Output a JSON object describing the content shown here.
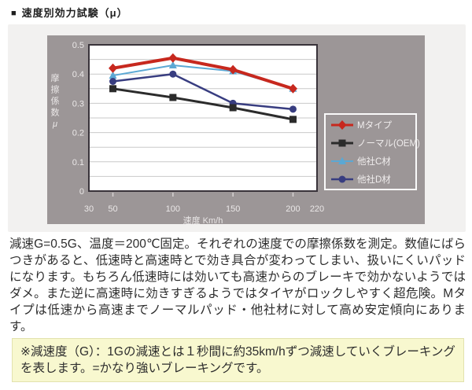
{
  "title": {
    "bullet": "■",
    "text": "速度別効力試験（μ）"
  },
  "chart_data": {
    "type": "line",
    "title": "速度別効力試験（μ）",
    "x": [
      50,
      100,
      150,
      200
    ],
    "xlabel": "速度 Km/h",
    "ylabel": "摩擦係数μ",
    "xlim": [
      30,
      220
    ],
    "ylim": [
      0,
      0.5
    ],
    "x_ticks": [
      30,
      50,
      100,
      150,
      200,
      220
    ],
    "y_ticks": [
      0,
      0.1,
      0.2,
      0.3,
      0.4,
      0.5
    ],
    "grid_step": 0.05,
    "grid": true,
    "legend_position": "right-inside",
    "draw_order": [
      2,
      3,
      1,
      0
    ],
    "series": [
      {
        "key": "m-type",
        "name": "Mタイプ",
        "color": "#c7281e",
        "marker": "diamond",
        "line_width": 4,
        "values": [
          0.42,
          0.455,
          0.415,
          0.35
        ]
      },
      {
        "key": "normal-oem",
        "name": "ノーマル(OEM)",
        "color": "#2b2b2b",
        "marker": "square",
        "line_width": 3,
        "values": [
          0.35,
          0.32,
          0.285,
          0.245
        ]
      },
      {
        "key": "other-c",
        "name": "他社C材",
        "color": "#5ba8d4",
        "marker": "triangle",
        "line_width": 2,
        "values": [
          0.395,
          0.43,
          0.41,
          0.35
        ]
      },
      {
        "key": "other-d",
        "name": "他社D材",
        "color": "#383d80",
        "marker": "circle",
        "line_width": 2.5,
        "values": [
          0.375,
          0.4,
          0.3,
          0.28
        ]
      }
    ],
    "style": {
      "chart_bg": "#9c9697",
      "plot_bg": "#ffffff",
      "plot_border": "#39333a",
      "grid_color": "#c9c9c9",
      "axis_text_color": "#eae7e7",
      "tick_color": "#d8d3d3",
      "legend_border": "#fafafa",
      "legend_text_color": "#f0eded"
    }
  },
  "colors": {
    "page_bg": "#ffffff",
    "panel_bg": "#f2f1f0",
    "note_bg": "#f8f8cf",
    "note_border": "#e2e2ad",
    "body_text": "#2d2d2d"
  },
  "description": "減速G=0.5G、温度＝200℃固定。それぞれの速度での摩擦係数を測定。数値にばらつきがあると、低速時と高速時とで効き具合が変わってしまい、扱いにくいパッドになります。もちろん低速時には効いても高速からのブレーキで効かないようではダメ。また逆に高速時に効きすぎるようではタイヤがロックしやすく超危険。Mタイプは低速から高速までノーマルパッド・他社材に対して高め安定傾向にあります。",
  "note": "※減速度（G）：1Gの減速とは１秒間に約35km/hずつ減速していくブレーキングを表します。=かなり強いブレーキングです。"
}
